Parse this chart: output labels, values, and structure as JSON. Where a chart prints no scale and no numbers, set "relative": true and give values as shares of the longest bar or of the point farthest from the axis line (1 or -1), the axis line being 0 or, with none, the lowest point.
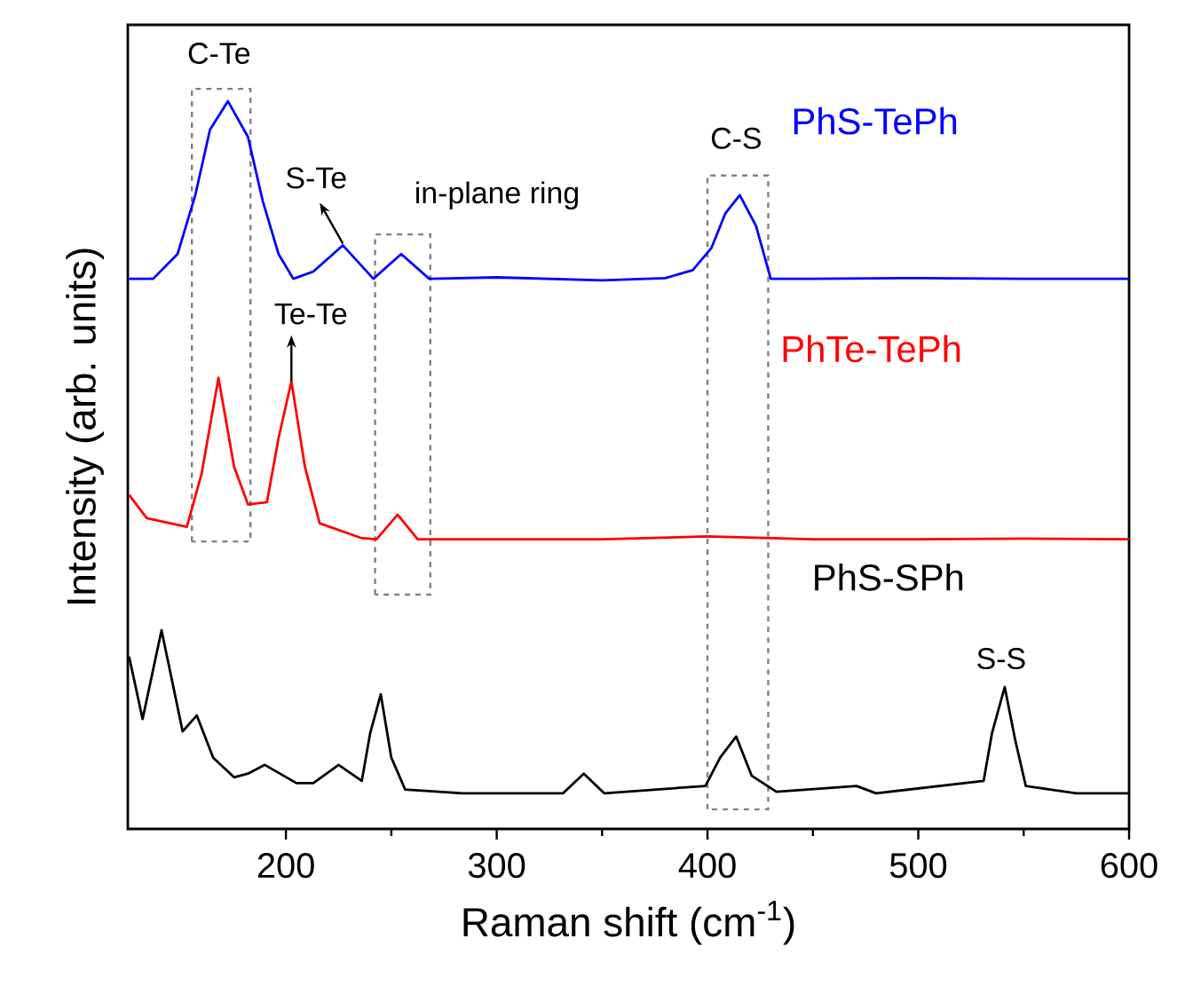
{
  "chart_data": {
    "type": "line",
    "relative": true,
    "xlabel": "Raman shift (cm$^{-1}$)",
    "ylabel": "Intensity (arb. units)",
    "xlim": [
      125,
      600
    ],
    "xticks": [
      200,
      300,
      400,
      500,
      600
    ],
    "series": [
      {
        "name": "PhS-TePh",
        "color": "#0000ff",
        "x": [
          125,
          137,
          148.6,
          157,
          164,
          172.5,
          182,
          189,
          196.5,
          203.5,
          213,
          227,
          241.5,
          254.7,
          268,
          300,
          350,
          380,
          393,
          401.8,
          408.5,
          415.3,
          423,
          430,
          450,
          500,
          550,
          600
        ],
        "values": [
          0.756,
          0.756,
          0.79,
          0.871,
          0.961,
          1.0,
          0.951,
          0.863,
          0.79,
          0.756,
          0.766,
          0.802,
          0.756,
          0.79,
          0.756,
          0.758,
          0.754,
          0.757,
          0.768,
          0.798,
          0.846,
          0.871,
          0.829,
          0.756,
          0.756,
          0.757,
          0.756,
          0.756
        ]
      },
      {
        "name": "PhTe-TePh",
        "color": "#ff0000",
        "x": [
          125.6,
          134,
          153,
          160,
          168,
          175.4,
          182,
          191,
          196.5,
          202.6,
          209,
          216,
          235.5,
          243,
          253,
          262.5,
          300,
          350,
          400,
          450,
          500,
          550,
          600
        ],
        "values": [
          0.459,
          0.427,
          0.415,
          0.488,
          0.62,
          0.498,
          0.446,
          0.449,
          0.537,
          0.615,
          0.498,
          0.42,
          0.4,
          0.398,
          0.432,
          0.398,
          0.398,
          0.398,
          0.402,
          0.398,
          0.398,
          0.399,
          0.398
        ]
      },
      {
        "name": "PhS-SPh",
        "color": "#000000",
        "x": [
          125.6,
          132,
          141,
          151,
          157.7,
          165.5,
          175.4,
          182,
          190,
          205,
          213,
          225,
          236,
          240,
          245,
          250,
          256.6,
          283.6,
          331.5,
          341.3,
          351,
          399,
          406,
          413.6,
          421,
          432.7,
          470.7,
          480,
          531,
          535,
          541,
          546,
          551,
          575,
          600
        ],
        "values": [
          0.237,
          0.151,
          0.273,
          0.134,
          0.156,
          0.098,
          0.071,
          0.076,
          0.088,
          0.063,
          0.063,
          0.088,
          0.066,
          0.132,
          0.185,
          0.098,
          0.054,
          0.049,
          0.049,
          0.076,
          0.049,
          0.059,
          0.098,
          0.127,
          0.073,
          0.051,
          0.059,
          0.049,
          0.066,
          0.132,
          0.195,
          0.122,
          0.059,
          0.049,
          0.049
        ]
      }
    ],
    "annotations": [
      {
        "text": "C-Te",
        "x": 172.5,
        "y": 1.0
      },
      {
        "text": "S-Te",
        "x": 227,
        "y": 0.802
      },
      {
        "text": "in-plane ring",
        "x": 254.7,
        "y": 0.79
      },
      {
        "text": "Te-Te",
        "x": 202.6,
        "y": 0.615
      },
      {
        "text": "C-S",
        "x": 415.3,
        "y": 0.871
      },
      {
        "text": "S-S",
        "x": 541,
        "y": 0.195
      }
    ]
  }
}
